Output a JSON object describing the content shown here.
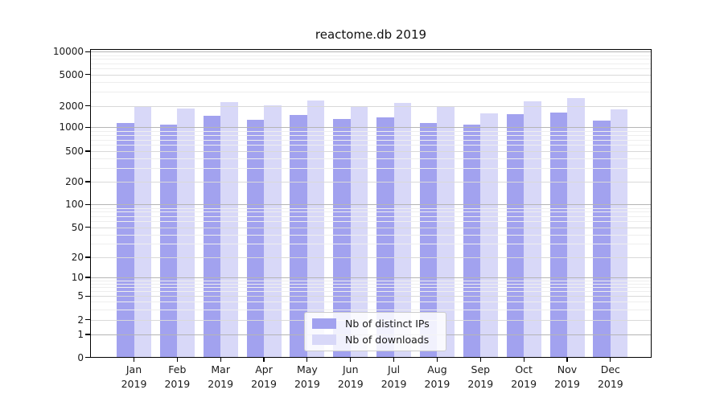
{
  "chart_data": {
    "type": "bar",
    "title": "reactome.db 2019",
    "categories": [
      "Jan",
      "Feb",
      "Mar",
      "Apr",
      "May",
      "Jun",
      "Jul",
      "Aug",
      "Sep",
      "Oct",
      "Nov",
      "Dec"
    ],
    "category_year": "2019",
    "series": [
      {
        "name": "Nb of distinct IPs",
        "color": "#a2a2ef",
        "values": [
          1150,
          1100,
          1430,
          1280,
          1500,
          1320,
          1380,
          1160,
          1080,
          1540,
          1610,
          1240
        ]
      },
      {
        "name": "Nb of downloads",
        "color": "#d8d8f8",
        "values": [
          1930,
          1820,
          2250,
          2020,
          2320,
          1910,
          2160,
          1940,
          1580,
          2300,
          2480,
          1770
        ]
      }
    ],
    "y_axis": {
      "scale": "log (with 0 baseline)",
      "ticks": [
        10000,
        5000,
        2000,
        1000,
        500,
        200,
        100,
        50,
        20,
        10,
        5,
        2,
        1,
        0
      ],
      "ylim": [
        0,
        10000
      ],
      "grid": true
    },
    "x_axis": {
      "tick_label_lines": 2
    },
    "legend": {
      "position": "lower center",
      "entries": [
        "Nb of distinct IPs",
        "Nb of downloads"
      ]
    },
    "colors": {
      "grid_decade": "#b5b5b5",
      "grid_labeled": "#d9d9d9",
      "grid_minor": "#eeeeee",
      "spine": "#000000",
      "text": "#1a1a1a",
      "legend_border": "#cccccc"
    }
  }
}
